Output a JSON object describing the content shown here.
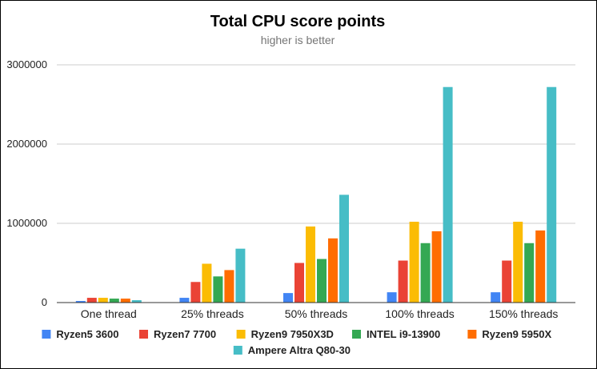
{
  "chart_data": {
    "type": "bar",
    "title": "Total CPU score points",
    "subtitle": "higher is better",
    "xlabel": "",
    "ylabel": "",
    "ylim": [
      0,
      3000000
    ],
    "yticks": [
      0,
      1000000,
      2000000,
      3000000
    ],
    "ytick_labels": [
      "0",
      "1000000",
      "2000000",
      "3000000"
    ],
    "grid": true,
    "legend_position": "bottom",
    "categories": [
      "One thread",
      "25% threads",
      "50% threads",
      "100% threads",
      "150% threads"
    ],
    "series": [
      {
        "name": "Ryzen5 3600",
        "color": "#4285f4",
        "values": [
          20000,
          60000,
          120000,
          130000,
          130000
        ]
      },
      {
        "name": "Ryzen7 7700",
        "color": "#ea4335",
        "values": [
          60000,
          260000,
          500000,
          530000,
          530000
        ]
      },
      {
        "name": "Ryzen9 7950X3D",
        "color": "#fbbc04",
        "values": [
          60000,
          490000,
          960000,
          1020000,
          1020000
        ]
      },
      {
        "name": "INTEL i9-13900",
        "color": "#34a853",
        "values": [
          50000,
          330000,
          550000,
          750000,
          750000
        ]
      },
      {
        "name": "Ryzen9 5950X",
        "color": "#ff6d01",
        "values": [
          50000,
          410000,
          810000,
          900000,
          910000
        ]
      },
      {
        "name": "Ampere Altra Q80-30",
        "color": "#46bdc6",
        "values": [
          30000,
          680000,
          1360000,
          2720000,
          2720000
        ]
      }
    ]
  }
}
